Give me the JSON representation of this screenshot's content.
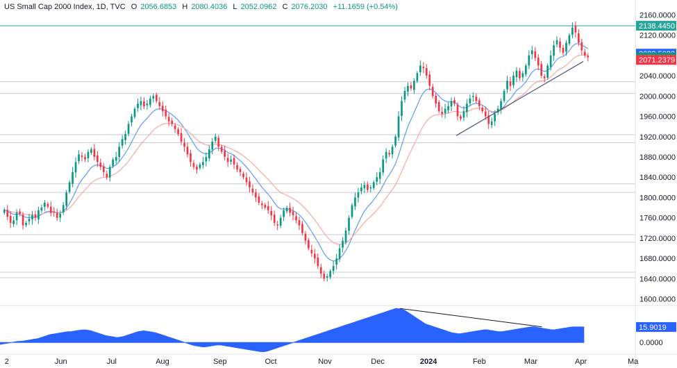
{
  "header": {
    "symbol": "US Small Cap 2000 Index, 1D, TVC",
    "o_label": "O",
    "o_value": "2056.6853",
    "h_label": "H",
    "h_value": "2080.4036",
    "l_label": "L",
    "l_value": "2052.0962",
    "c_label": "C",
    "c_value": "2076.2030",
    "change": "+11.1659 (+0.54%)"
  },
  "colors": {
    "up": "#089981",
    "down": "#f23645",
    "ema_fast": "#5b9cf6",
    "ema_slow": "#f7a8a8",
    "level_line": "#c8ccd4",
    "trend_line": "#4a5a78",
    "top_line": "#26a69a",
    "oscillator": "#2962ff",
    "badge_top": "#26a69a",
    "badge_blue": "#2962ff",
    "badge_green": "#089981",
    "badge_red": "#f23645"
  },
  "chart_data": {
    "type": "candlestick",
    "y_ticks": [
      "2160.0000",
      "2120.0000",
      "2080.0000",
      "2040.0000",
      "2000.0000",
      "1960.0000",
      "1920.0000",
      "1880.0000",
      "1840.0000",
      "1800.0000",
      "1760.0000",
      "1720.0000",
      "1680.0000",
      "1640.0000",
      "1600.0000"
    ],
    "ylim": [
      1590,
      2170
    ],
    "x_ticks": [
      {
        "label": "2",
        "x": 0.01
      },
      {
        "label": "Jun",
        "x": 0.09
      },
      {
        "label": "Jul",
        "x": 0.165
      },
      {
        "label": "Aug",
        "x": 0.24
      },
      {
        "label": "Sep",
        "x": 0.325
      },
      {
        "label": "Oct",
        "x": 0.4
      },
      {
        "label": "Nov",
        "x": 0.48
      },
      {
        "label": "Dec",
        "x": 0.558
      },
      {
        "label": "2024",
        "x": 0.633
      },
      {
        "label": "Feb",
        "x": 0.708
      },
      {
        "label": "Mar",
        "x": 0.784
      },
      {
        "label": "Apr",
        "x": 0.858
      },
      {
        "label": "Ma",
        "x": 0.935
      }
    ],
    "horizontal_levels": [
      2028,
      2005,
      1924,
      1908,
      1827,
      1810,
      1727,
      1712,
      1653,
      1642
    ],
    "top_level": 2138.445,
    "price_badges": [
      {
        "label": "2138.4450",
        "value": 2138.445,
        "color": "badge_top"
      },
      {
        "label": "2083.5022",
        "value": 2083.5022,
        "color": "badge_blue"
      },
      {
        "label": "2076.2030",
        "value": 2076.203,
        "color": "badge_green"
      },
      {
        "label": "2071.2379",
        "value": 2071.2379,
        "color": "badge_red"
      }
    ],
    "trendline": {
      "x1": 0.718,
      "y1": 1922,
      "x2": 0.918,
      "y2": 2068
    },
    "oscillator": {
      "y_tick": "0.0000",
      "badge_label": "15.9019",
      "badge_value": 15.9019,
      "ylim": [
        -12,
        38
      ],
      "divergence_line": {
        "x1": 0.629,
        "y1": 35,
        "x2": 0.853,
        "y2": 16
      }
    },
    "closes": [
      1776,
      1762,
      1750,
      1755,
      1770,
      1768,
      1745,
      1750,
      1758,
      1765,
      1760,
      1775,
      1780,
      1790,
      1782,
      1770,
      1772,
      1760,
      1768,
      1785,
      1810,
      1830,
      1850,
      1870,
      1885,
      1880,
      1875,
      1890,
      1895,
      1880,
      1870,
      1860,
      1850,
      1840,
      1860,
      1875,
      1880,
      1900,
      1915,
      1925,
      1945,
      1960,
      1975,
      1985,
      1990,
      1980,
      1985,
      1995,
      2000,
      1990,
      1980,
      1970,
      1960,
      1950,
      1945,
      1935,
      1925,
      1910,
      1900,
      1885,
      1870,
      1860,
      1855,
      1865,
      1870,
      1880,
      1895,
      1910,
      1920,
      1900,
      1890,
      1880,
      1870,
      1875,
      1865,
      1855,
      1850,
      1840,
      1830,
      1820,
      1810,
      1800,
      1790,
      1785,
      1780,
      1775,
      1765,
      1750,
      1745,
      1760,
      1775,
      1780,
      1770,
      1765,
      1755,
      1745,
      1730,
      1715,
      1700,
      1690,
      1680,
      1665,
      1650,
      1640,
      1645,
      1655,
      1665,
      1680,
      1700,
      1715,
      1735,
      1760,
      1785,
      1800,
      1810,
      1820,
      1825,
      1815,
      1820,
      1830,
      1840,
      1850,
      1875,
      1890,
      1885,
      1900,
      1920,
      1960,
      1990,
      2010,
      2020,
      2015,
      2030,
      2045,
      2060,
      2055,
      2040,
      2020,
      2000,
      1985,
      1970,
      1965,
      1975,
      1980,
      1990,
      1985,
      1960,
      1955,
      1970,
      1985,
      1995,
      2000,
      1990,
      1980,
      1970,
      1960,
      1945,
      1950,
      1965,
      1975,
      1990,
      2010,
      2030,
      2020,
      2040,
      2050,
      2035,
      2045,
      2060,
      2080,
      2090,
      2075,
      2060,
      2040,
      2035,
      2060,
      2080,
      2100,
      2110,
      2095,
      2085,
      2105,
      2120,
      2135,
      2125,
      2105,
      2090,
      2080,
      2076.203
    ],
    "osc_values": [
      -2,
      -1.5,
      -1,
      -0.5,
      0,
      0.5,
      1,
      1.2,
      1.5,
      2,
      2.5,
      3,
      3.5,
      4,
      5,
      6,
      7,
      8,
      8.5,
      9,
      9.5,
      10,
      10.5,
      11,
      11,
      11.5,
      12,
      12.5,
      12.8,
      13,
      12.5,
      12,
      11,
      10,
      9,
      8,
      7,
      6.5,
      6,
      5.5,
      5,
      5.5,
      6,
      7,
      8,
      9,
      10,
      11,
      11.5,
      12,
      11.5,
      11,
      10.5,
      10,
      9,
      8,
      7,
      6,
      5,
      4,
      3,
      2,
      1,
      0,
      -1,
      -2,
      -3,
      -3.5,
      -4,
      -4.5,
      -4.5,
      -4,
      -3.5,
      -3,
      -2.5,
      -2.5,
      -3,
      -3.5,
      -4,
      -4.5,
      -5,
      -5.5,
      -6,
      -6.5,
      -7,
      -7.5,
      -8,
      -8.5,
      -9,
      -9.5,
      -9.5,
      -9,
      -8,
      -7,
      -6,
      -5,
      -4,
      -3,
      -2,
      -1,
      0,
      1,
      2,
      3,
      4,
      5,
      6,
      7,
      8,
      9,
      10,
      11,
      12,
      13,
      14,
      15,
      16,
      17,
      18,
      19,
      20,
      21,
      22,
      23,
      24,
      25,
      26,
      27,
      28,
      29,
      30,
      31,
      32,
      33,
      34,
      35,
      34.5,
      34,
      33,
      31,
      29,
      27,
      25,
      23,
      21,
      19,
      18,
      17,
      16,
      15,
      14,
      13,
      12,
      11,
      10,
      9.5,
      9,
      9,
      9.5,
      10,
      10.5,
      11,
      11.5,
      12,
      12.5,
      13,
      13,
      12.5,
      12,
      11.5,
      11,
      11,
      11.5,
      12,
      12.5,
      13,
      13.5,
      14,
      14.5,
      15,
      15.5,
      16,
      16,
      15.5,
      15,
      14.5,
      14,
      13.5,
      13,
      13,
      13.5,
      14,
      14.5,
      15,
      15.5,
      15.9,
      15.9,
      15.9,
      15.9,
      15.9019
    ]
  }
}
